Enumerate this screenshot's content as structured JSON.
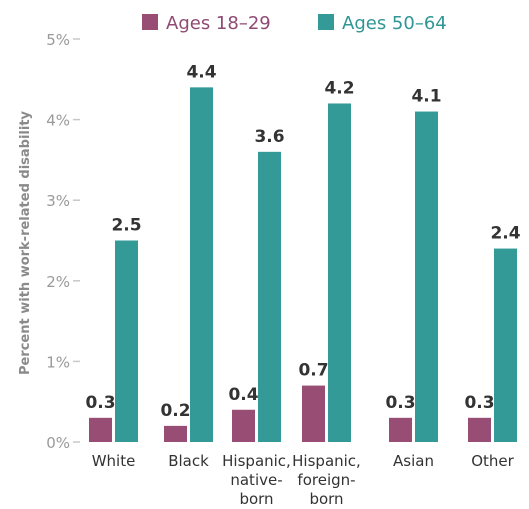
{
  "colors": {
    "young": "#984D75",
    "old": "#339A98",
    "young_text": "#8F4A73",
    "old_text": "#2F9694",
    "axis": "#c8c8c8"
  },
  "chart_data": {
    "type": "bar",
    "categories": [
      [
        "White"
      ],
      [
        "Black"
      ],
      [
        "Hispanic,",
        "native-",
        "born"
      ],
      [
        "Hispanic,",
        "foreign-",
        "born"
      ],
      [
        "Asian"
      ],
      [
        "Other"
      ]
    ],
    "series": [
      {
        "name": "Ages 18–29",
        "values": [
          0.3,
          0.2,
          0.4,
          0.7,
          0.3,
          0.3
        ],
        "color": "#984D75"
      },
      {
        "name": "Ages 50–64",
        "values": [
          2.5,
          4.4,
          3.6,
          4.2,
          4.1,
          2.4
        ],
        "color": "#339A98"
      }
    ],
    "ylabel": "Percent with work-related disability",
    "ylim": [
      0,
      5
    ],
    "yticks": [
      "0%",
      "1%",
      "2%",
      "3%",
      "4%",
      "5%"
    ],
    "grid": false,
    "legend": "top"
  }
}
